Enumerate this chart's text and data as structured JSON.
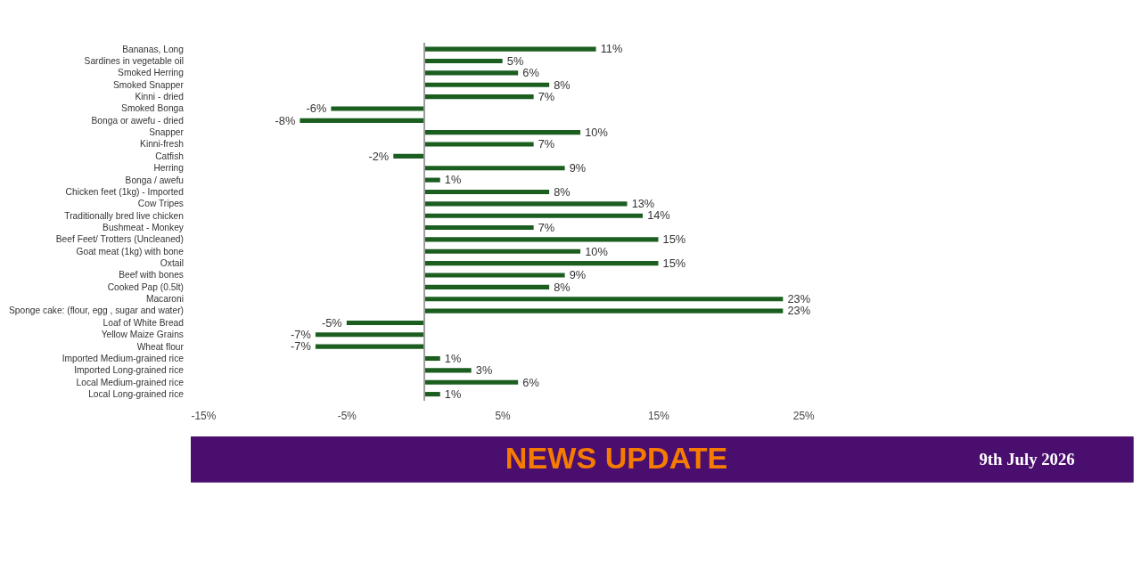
{
  "chart_data": {
    "type": "bar",
    "orientation": "horizontal",
    "categories": [
      "Bananas, Long",
      "Sardines in vegetable oil",
      "Smoked Herring",
      "Smoked Snapper",
      "Kinni - dried",
      "Smoked Bonga",
      "Bonga or awefu - dried",
      "Snapper",
      "Kinni-fresh",
      "Catfish",
      "Herring",
      "Bonga / awefu",
      "Chicken feet (1kg) - Imported",
      "Cow Tripes",
      "Traditionally bred live chicken",
      "Bushmeat - Monkey",
      "Beef Feet/ Trotters (Uncleaned)",
      "Goat meat (1kg) with bone",
      "Oxtail",
      "Beef with bones",
      "Cooked Pap (0.5lt)",
      "Macaroni",
      "Sponge cake: (flour, egg , sugar and water)",
      "Loaf of White Bread",
      "Yellow Maize Grains",
      "Wheat flour",
      "Imported Medium-grained rice",
      "Imported Long-grained rice",
      "Local Medium-grained rice",
      "Local Long-grained rice"
    ],
    "values": [
      11,
      5,
      6,
      8,
      7,
      -6,
      -8,
      10,
      7,
      -2,
      9,
      1,
      8,
      13,
      14,
      7,
      15,
      10,
      15,
      9,
      8,
      23,
      23,
      -5,
      -7,
      -7,
      1,
      3,
      6,
      1
    ],
    "value_labels": [
      "11%",
      "5%",
      "6%",
      "8%",
      "7%",
      "-6%",
      "-8%",
      "10%",
      "7%",
      "-2%",
      "9%",
      "1%",
      "8%",
      "13%",
      "14%",
      "7%",
      "15%",
      "10%",
      "15%",
      "9%",
      "8%",
      "23%",
      "23%",
      "-5%",
      "-7%",
      "-7%",
      "1%",
      "3%",
      "6%",
      "1%"
    ],
    "color": "#1b5e20",
    "xlim": [
      -15,
      25
    ],
    "xticks": [
      {
        "value": -15,
        "label": "-15%"
      },
      {
        "value": -5,
        "label": "-5%"
      },
      {
        "value": 5,
        "label": "5%"
      },
      {
        "value": 15,
        "label": "15%"
      },
      {
        "value": 25,
        "label": "25%"
      }
    ],
    "grid": false,
    "annotations": [
      "NEWS UPDATE",
      "9th July 2026"
    ]
  }
}
